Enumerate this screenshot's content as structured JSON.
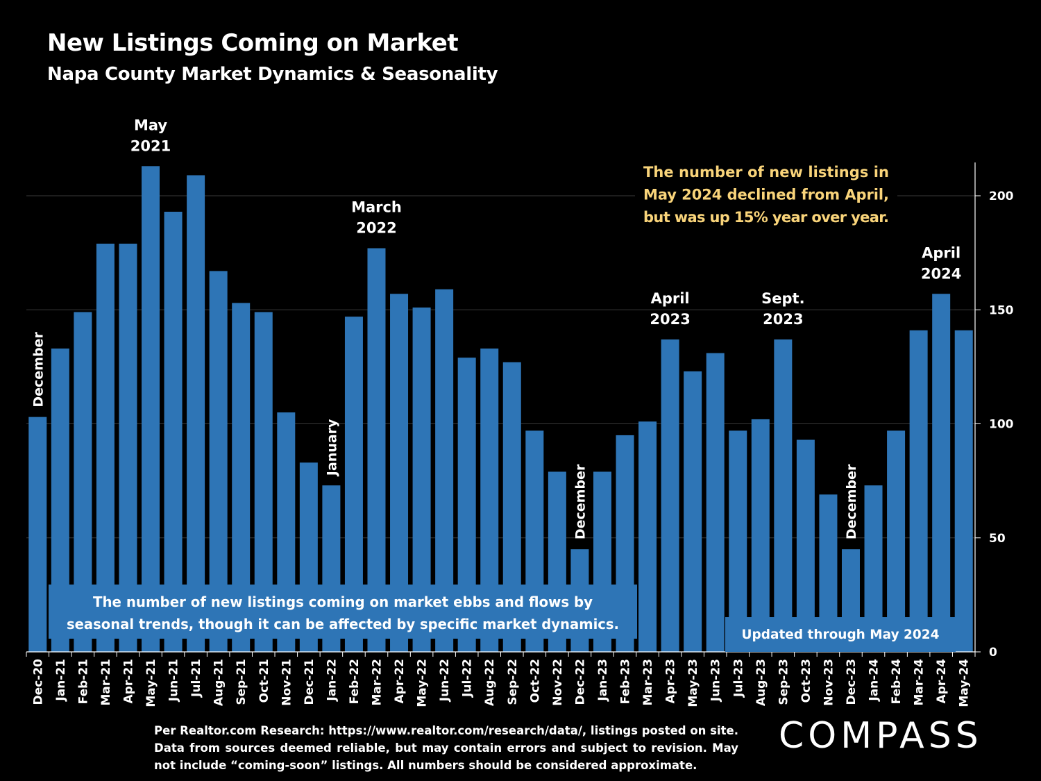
{
  "header": {
    "title": "New Listings Coming on Market",
    "subtitle": "Napa County Market Dynamics & Seasonality"
  },
  "chart_data": {
    "type": "bar",
    "categories": [
      "Dec-20",
      "Jan-21",
      "Feb-21",
      "Mar-21",
      "Apr-21",
      "May-21",
      "Jun-21",
      "Jul-21",
      "Aug-21",
      "Sep-21",
      "Oct-21",
      "Nov-21",
      "Dec-21",
      "Jan-22",
      "Feb-22",
      "Mar-22",
      "Apr-22",
      "May-22",
      "Jun-22",
      "Jul-22",
      "Aug-22",
      "Sep-22",
      "Oct-22",
      "Nov-22",
      "Dec-22",
      "Jan-23",
      "Feb-23",
      "Mar-23",
      "Apr-23",
      "May-23",
      "Jun-23",
      "Jul-23",
      "Aug-23",
      "Sep-23",
      "Oct-23",
      "Nov-23",
      "Dec-23",
      "Jan-24",
      "Feb-24",
      "Mar-24",
      "Apr-24",
      "May-24"
    ],
    "values": [
      103,
      133,
      149,
      179,
      179,
      213,
      193,
      209,
      167,
      153,
      149,
      105,
      83,
      73,
      147,
      177,
      157,
      151,
      159,
      129,
      133,
      127,
      97,
      79,
      45,
      79,
      95,
      101,
      137,
      123,
      131,
      97,
      102,
      137,
      93,
      69,
      45,
      73,
      97,
      141,
      157,
      141
    ],
    "ylim": [
      0,
      215
    ],
    "yticks": [
      0,
      50,
      100,
      150,
      200
    ],
    "y_axis_side": "right",
    "bar_color": "#2E75B6",
    "grid": true,
    "annotations": [
      {
        "index": 0,
        "text": "December",
        "style": "vertical"
      },
      {
        "index": 5,
        "lines": [
          "May",
          "2021"
        ],
        "style": "above"
      },
      {
        "index": 13,
        "text": "January",
        "style": "vertical"
      },
      {
        "index": 15,
        "lines": [
          "March",
          "2022"
        ],
        "style": "above"
      },
      {
        "index": 24,
        "text": "December",
        "style": "vertical"
      },
      {
        "index": 28,
        "lines": [
          "April",
          "2023"
        ],
        "style": "above"
      },
      {
        "index": 33,
        "lines": [
          "Sept.",
          "2023"
        ],
        "style": "above"
      },
      {
        "index": 36,
        "text": "December",
        "style": "vertical"
      },
      {
        "index": 40,
        "lines": [
          "April",
          "2024"
        ],
        "style": "above"
      }
    ]
  },
  "callouts": {
    "highlight_lines": [
      "The number of new listings in",
      "May 2024 declined from April,",
      "but was up 15% year over year."
    ],
    "highlight_color": "#F9D47A",
    "box_lines": [
      "The number of new listings coming on market ebbs and flows by",
      "seasonal trends, though it can be affected by specific market dynamics."
    ],
    "updated": "Updated through May 2024"
  },
  "footer": {
    "footnote": "Per Realtor.com Research:  https://www.realtor.com/research/data/, listings posted on site. Data from sources deemed reliable, but may contain errors and subject to revision. May not include “coming-soon” listings. All numbers should be considered approximate.",
    "logo_text": "COMPASS"
  }
}
